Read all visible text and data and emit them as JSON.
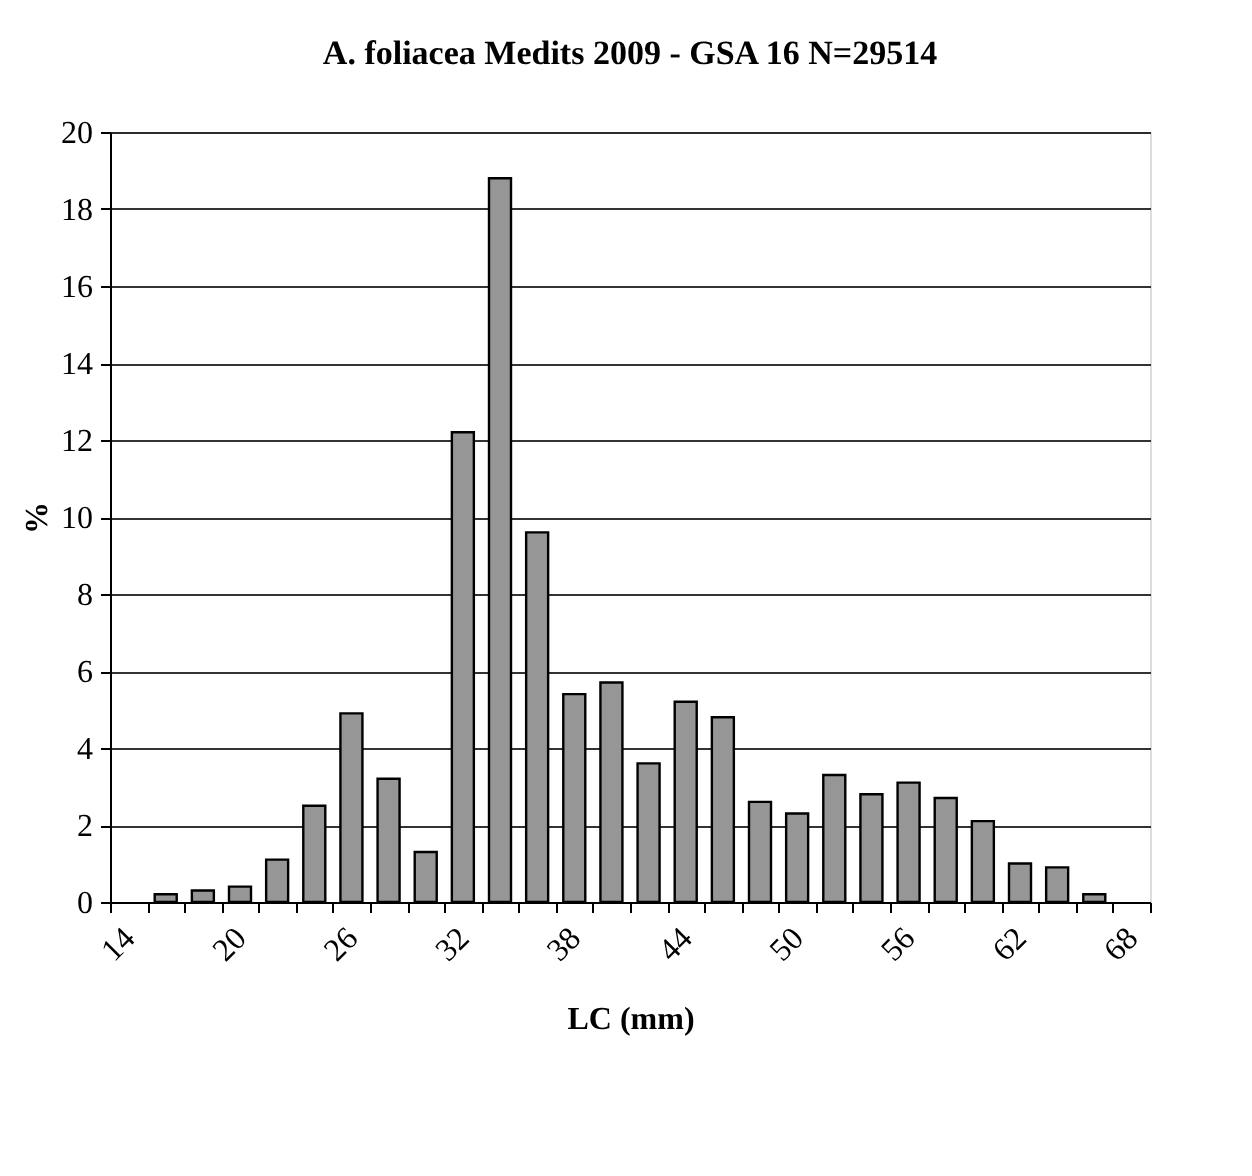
{
  "chart_data": {
    "type": "bar",
    "title": "A. foliacea Medits 2009 - GSA 16 N=29514",
    "xlabel": "LC (mm)",
    "ylabel": "%",
    "categories": [
      "14",
      null,
      null,
      "20",
      null,
      null,
      "26",
      null,
      null,
      "32",
      null,
      null,
      "38",
      null,
      null,
      "44",
      null,
      null,
      "50",
      null,
      null,
      "56",
      null,
      null,
      "62",
      null,
      null,
      "68"
    ],
    "values": [
      null,
      0.2,
      0.3,
      0.4,
      1.1,
      2.5,
      4.9,
      3.2,
      1.3,
      12.2,
      18.8,
      9.6,
      5.4,
      5.7,
      3.6,
      5.2,
      4.8,
      2.6,
      2.3,
      3.3,
      2.8,
      3.1,
      2.7,
      2.1,
      1.0,
      0.9,
      0.2,
      null
    ],
    "color": "#969696",
    "ylim": [
      0,
      20
    ],
    "yticks": [
      0,
      2,
      4,
      6,
      8,
      10,
      12,
      14,
      16,
      18,
      20
    ],
    "grid": "y"
  }
}
